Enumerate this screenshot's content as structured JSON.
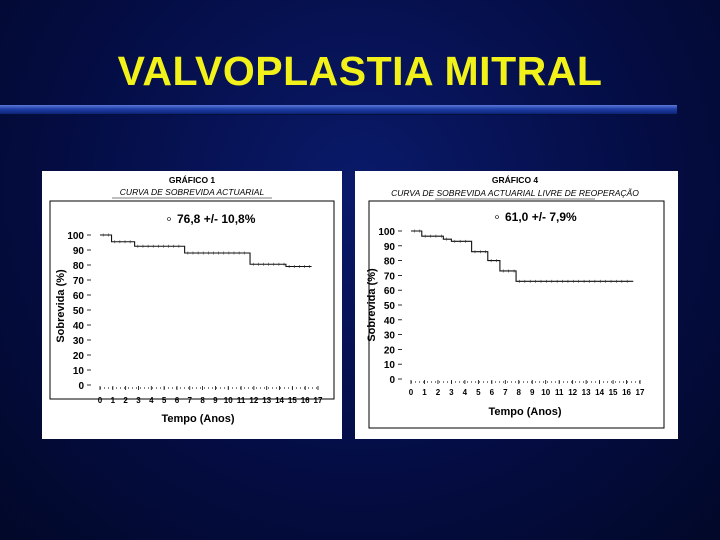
{
  "slide": {
    "title": "VALVOPLASTIA MITRAL"
  },
  "colors": {
    "background": "#040d45",
    "title": "#f2f21a",
    "rule": "#2a4ab8"
  },
  "chart_data": [
    {
      "type": "line",
      "step": true,
      "heading": "GRÁFICO 1",
      "subtitle": "CURVA DE SOBREVIDA ACTUARIAL",
      "annotation": "76,8 +/- 10,8%",
      "xlabel": "Tempo (Anos)",
      "ylabel": "Sobrevida (%)",
      "xlim": [
        0,
        17
      ],
      "ylim": [
        0,
        100
      ],
      "x_ticks": [
        0,
        1,
        2,
        3,
        4,
        5,
        6,
        7,
        8,
        9,
        10,
        11,
        12,
        13,
        14,
        15,
        16,
        17
      ],
      "y_ticks": [
        0,
        10,
        20,
        30,
        40,
        50,
        60,
        70,
        80,
        90,
        100
      ],
      "series": [
        {
          "name": "Sobrevida",
          "x": [
            0,
            0.9,
            2.7,
            6.6,
            11.7,
            14.5
          ],
          "y": [
            100,
            95.5,
            92.5,
            88,
            80.5,
            79
          ]
        }
      ]
    },
    {
      "type": "line",
      "step": true,
      "heading": "GRÁFICO 4",
      "subtitle": "CURVA DE SOBREVIDA ACTUARIAL LIVRE DE REOPERAÇÃO",
      "annotation": "61,0 +/- 7,9%",
      "xlabel": "Tempo (Anos)",
      "ylabel": "Sobrevida (%)",
      "xlim": [
        0,
        17
      ],
      "ylim": [
        0,
        100
      ],
      "x_ticks": [
        0,
        1,
        2,
        3,
        4,
        5,
        6,
        7,
        8,
        9,
        10,
        11,
        12,
        13,
        14,
        15,
        16,
        17
      ],
      "y_ticks": [
        0,
        10,
        20,
        30,
        40,
        50,
        60,
        70,
        80,
        90,
        100
      ],
      "series": [
        {
          "name": "Livre de reoperação",
          "x": [
            0,
            0.8,
            2.4,
            3.0,
            4.5,
            5.7,
            6.6,
            7.8
          ],
          "y": [
            100,
            96.5,
            94.5,
            93,
            86,
            80,
            73,
            66
          ]
        }
      ]
    }
  ]
}
